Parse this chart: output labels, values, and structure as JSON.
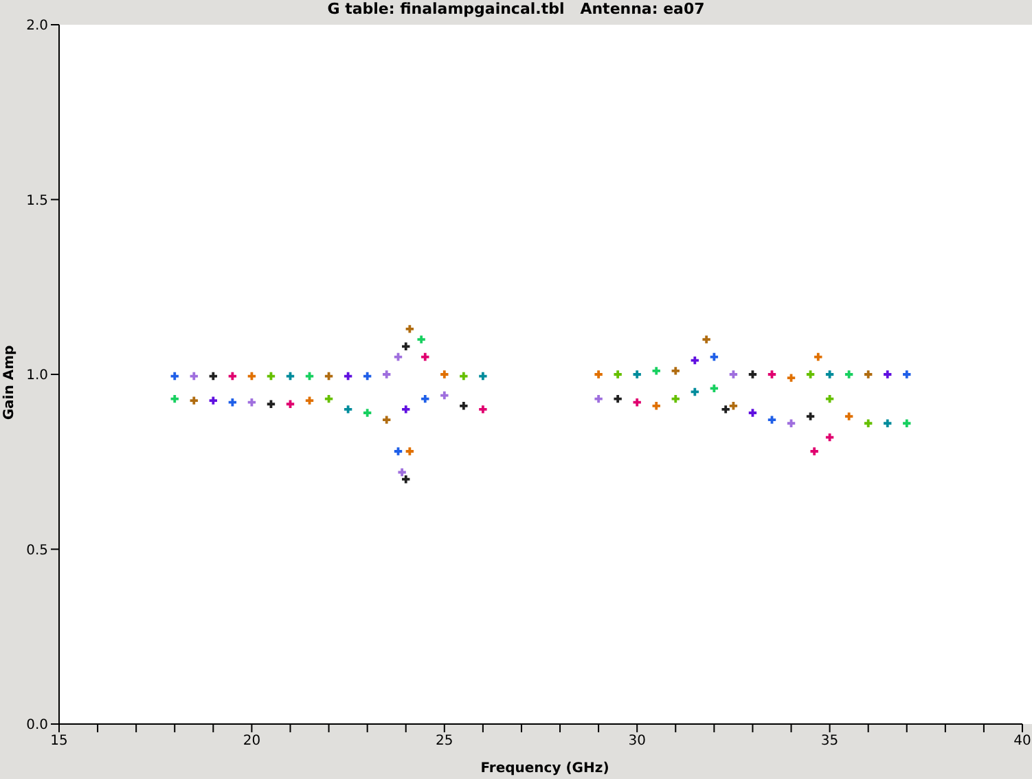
{
  "chart_data": {
    "type": "scatter",
    "title": "G table: finalampgaincal.tbl   Antenna: ea07",
    "xlabel": "Frequency (GHz)",
    "ylabel": "Gain Amp",
    "xlim": [
      15,
      40
    ],
    "xticks": [
      15,
      {
        "value": 16,
        "label": null
      },
      {
        "value": 17,
        "label": null
      },
      {
        "value": 18,
        "label": null
      },
      {
        "value": 19,
        "label": null
      },
      20,
      {
        "value": 21,
        "label": null
      },
      {
        "value": 22,
        "label": null
      },
      {
        "value": 23,
        "label": null
      },
      {
        "value": 24,
        "label": null
      },
      25,
      {
        "value": 26,
        "label": null
      },
      {
        "value": 27,
        "label": null
      },
      {
        "value": 28,
        "label": null
      },
      {
        "value": 29,
        "label": null
      },
      30,
      {
        "value": 31,
        "label": null
      },
      {
        "value": 32,
        "label": null
      },
      {
        "value": 33,
        "label": null
      },
      {
        "value": 34,
        "label": null
      },
      35,
      {
        "value": 36,
        "label": null
      },
      {
        "value": 37,
        "label": null
      },
      {
        "value": 38,
        "label": null
      },
      {
        "value": 39,
        "label": null
      },
      40
    ],
    "ylim": [
      0,
      2
    ],
    "yticks": [
      {
        "value": 0,
        "label": "0.0"
      },
      {
        "value": 0.5,
        "label": "0.5"
      },
      {
        "value": 1,
        "label": "1.0"
      },
      {
        "value": 1.5,
        "label": "1.5"
      },
      {
        "value": 2,
        "label": "2.0"
      }
    ],
    "grid": false,
    "legend": false,
    "marker": "cross",
    "x": [
      18.0,
      18.5,
      19.0,
      19.5,
      20.0,
      20.5,
      21.0,
      21.5,
      22.0,
      22.5,
      23.0,
      23.5,
      24.0,
      24.5,
      25.0,
      25.5,
      26.0,
      18.0,
      18.5,
      19.0,
      19.5,
      20.0,
      20.5,
      21.0,
      21.5,
      22.0,
      22.5,
      23.0,
      23.5,
      24.0,
      24.5,
      25.0,
      25.5,
      26.0,
      23.8,
      23.9,
      24.0,
      24.1,
      24.1,
      24.4,
      23.8,
      29.0,
      29.5,
      30.0,
      30.5,
      31.0,
      31.5,
      32.0,
      32.5,
      33.0,
      33.5,
      34.0,
      34.5,
      35.0,
      35.5,
      36.0,
      36.5,
      37.0,
      29.0,
      29.5,
      30.0,
      30.5,
      31.0,
      31.5,
      32.0,
      32.5,
      33.0,
      33.5,
      34.0,
      34.5,
      35.0,
      35.5,
      36.0,
      36.5,
      37.0,
      31.8,
      34.6,
      34.7,
      32.3,
      35.0
    ],
    "values": [
      0.995,
      0.995,
      0.995,
      0.995,
      0.995,
      0.995,
      0.995,
      0.995,
      0.995,
      0.995,
      0.995,
      1.0,
      1.08,
      1.05,
      1.0,
      0.995,
      0.995,
      0.93,
      0.925,
      0.925,
      0.92,
      0.92,
      0.915,
      0.915,
      0.925,
      0.93,
      0.9,
      0.89,
      0.87,
      0.9,
      0.93,
      0.94,
      0.91,
      0.9,
      0.78,
      0.72,
      0.7,
      0.78,
      1.13,
      1.1,
      1.05,
      1.0,
      1.0,
      1.0,
      1.01,
      1.01,
      1.04,
      1.05,
      1.0,
      1.0,
      1.0,
      0.99,
      1.0,
      1.0,
      1.0,
      1.0,
      1.0,
      1.0,
      0.93,
      0.93,
      0.92,
      0.91,
      0.93,
      0.95,
      0.96,
      0.91,
      0.89,
      0.87,
      0.86,
      0.88,
      0.82,
      0.88,
      0.86,
      0.86,
      0.86,
      1.1,
      0.78,
      1.05,
      0.9,
      0.93
    ],
    "colors": [
      "#1f5fe8",
      "#9f6fde",
      "#202020",
      "#e0006f",
      "#e07000",
      "#66c000",
      "#008c9c",
      "#18d060",
      "#b06c10",
      "#6010e0",
      "#1f5fe8",
      "#9f6fde",
      "#202020",
      "#e0006f",
      "#e07000",
      "#66c000",
      "#008c9c",
      "#18d060",
      "#b06c10",
      "#6010e0",
      "#1f5fe8",
      "#9f6fde",
      "#202020",
      "#e0006f",
      "#e07000",
      "#66c000",
      "#008c9c",
      "#18d060",
      "#b06c10",
      "#6010e0",
      "#1f5fe8",
      "#9f6fde",
      "#202020",
      "#e0006f",
      "#1f5fe8",
      "#9f6fde",
      "#202020",
      "#e07000",
      "#b06c10",
      "#18d060",
      "#9f6fde",
      "#e07000",
      "#66c000",
      "#008c9c",
      "#18d060",
      "#b06c10",
      "#6010e0",
      "#1f5fe8",
      "#9f6fde",
      "#202020",
      "#e0006f",
      "#e07000",
      "#66c000",
      "#008c9c",
      "#18d060",
      "#b06c10",
      "#6010e0",
      "#1f5fe8",
      "#9f6fde",
      "#202020",
      "#e0006f",
      "#e07000",
      "#66c000",
      "#008c9c",
      "#18d060",
      "#b06c10",
      "#6010e0",
      "#1f5fe8",
      "#9f6fde",
      "#202020",
      "#e0006f",
      "#e07000",
      "#66c000",
      "#008c9c",
      "#18d060",
      "#b06c10",
      "#e0006f",
      "#e07000",
      "#202020",
      "#66c000"
    ]
  }
}
